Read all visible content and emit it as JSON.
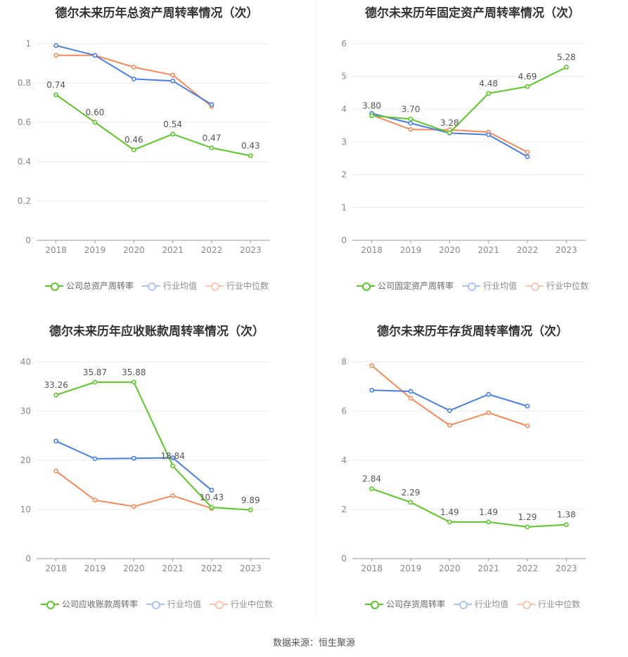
{
  "source": "数据来源：恒生聚源",
  "colors": {
    "company": "#5cc42a",
    "avg": "#4a7fe0",
    "median": "#f48a5c"
  },
  "charts": [
    {
      "title": "德尔未来历年总资产周转率情况（次）",
      "legend": [
        "公司总资产周转率",
        "行业均值",
        "行业中位数"
      ],
      "chart_data": {
        "type": "line",
        "categories": [
          "2018",
          "2019",
          "2020",
          "2021",
          "2022",
          "2023"
        ],
        "ylim": [
          0,
          1
        ],
        "yticks": [
          0,
          0.2,
          0.4,
          0.6,
          0.8,
          1
        ],
        "ytick_labels": [
          "0",
          "0.2",
          "0.4",
          "0.6",
          "0.8",
          "1"
        ],
        "series": [
          {
            "name": "公司总资产周转率",
            "values": [
              0.74,
              0.6,
              0.46,
              0.54,
              0.47,
              0.43
            ],
            "labels": [
              "0.74",
              "0.60",
              "0.46",
              "0.54",
              "0.47",
              "0.43"
            ]
          },
          {
            "name": "行业均值",
            "values": [
              0.99,
              0.94,
              0.82,
              0.81,
              0.69,
              null
            ]
          },
          {
            "name": "行业中位数",
            "values": [
              0.94,
              0.94,
              0.88,
              0.84,
              0.68,
              null
            ]
          }
        ]
      }
    },
    {
      "title": "德尔未来历年固定资产周转率情况（次）",
      "legend": [
        "公司固定资产周转率",
        "行业均值",
        "行业中位数"
      ],
      "chart_data": {
        "type": "line",
        "categories": [
          "2018",
          "2019",
          "2020",
          "2021",
          "2022",
          "2023"
        ],
        "ylim": [
          0,
          6
        ],
        "yticks": [
          0,
          1,
          2,
          3,
          4,
          5,
          6
        ],
        "ytick_labels": [
          "0",
          "1",
          "2",
          "3",
          "4",
          "5",
          "6"
        ],
        "series": [
          {
            "name": "公司固定资产周转率",
            "values": [
              3.8,
              3.7,
              3.28,
              4.48,
              4.69,
              5.28
            ],
            "labels": [
              "3.80",
              "3.70",
              "3.28",
              "4.48",
              "4.69",
              "5.28"
            ]
          },
          {
            "name": "行业均值",
            "values": [
              3.87,
              3.57,
              3.27,
              3.22,
              2.55,
              null
            ]
          },
          {
            "name": "行业中位数",
            "values": [
              3.82,
              3.38,
              3.37,
              3.3,
              2.69,
              null
            ]
          }
        ]
      }
    },
    {
      "title": "德尔未来历年应收账款周转率情况（次）",
      "legend": [
        "公司应收账款周转率",
        "行业均值",
        "行业中位数"
      ],
      "chart_data": {
        "type": "line",
        "categories": [
          "2018",
          "2019",
          "2020",
          "2021",
          "2022",
          "2023"
        ],
        "ylim": [
          0,
          40
        ],
        "yticks": [
          0,
          10,
          20,
          30,
          40
        ],
        "ytick_labels": [
          "0",
          "10",
          "20",
          "30",
          "40"
        ],
        "series": [
          {
            "name": "公司应收账款周转率",
            "values": [
              33.26,
              35.87,
              35.88,
              18.84,
              10.43,
              9.89
            ],
            "labels": [
              "33.26",
              "35.87",
              "35.88",
              "18.84",
              "10.43",
              "9.89"
            ]
          },
          {
            "name": "行业均值",
            "values": [
              23.9,
              20.3,
              20.4,
              20.5,
              13.9,
              null
            ]
          },
          {
            "name": "行业中位数",
            "values": [
              17.8,
              11.9,
              10.6,
              12.8,
              10.2,
              null
            ]
          }
        ]
      }
    },
    {
      "title": "德尔未来历年存货周转率情况（次）",
      "legend": [
        "公司存货周转率",
        "行业均值",
        "行业中位数"
      ],
      "chart_data": {
        "type": "line",
        "categories": [
          "2018",
          "2019",
          "2020",
          "2021",
          "2022",
          "2023"
        ],
        "ylim": [
          0,
          8
        ],
        "yticks": [
          0,
          2,
          4,
          6,
          8
        ],
        "ytick_labels": [
          "0",
          "2",
          "4",
          "6",
          "8"
        ],
        "series": [
          {
            "name": "公司存货周转率",
            "values": [
              2.84,
              2.29,
              1.49,
              1.49,
              1.29,
              1.38
            ],
            "labels": [
              "2.84",
              "2.29",
              "1.49",
              "1.49",
              "1.29",
              "1.38"
            ]
          },
          {
            "name": "行业均值",
            "values": [
              6.85,
              6.8,
              6.02,
              6.68,
              6.2,
              null
            ]
          },
          {
            "name": "行业中位数",
            "values": [
              7.85,
              6.52,
              5.42,
              5.93,
              5.4,
              null
            ]
          }
        ]
      }
    }
  ]
}
